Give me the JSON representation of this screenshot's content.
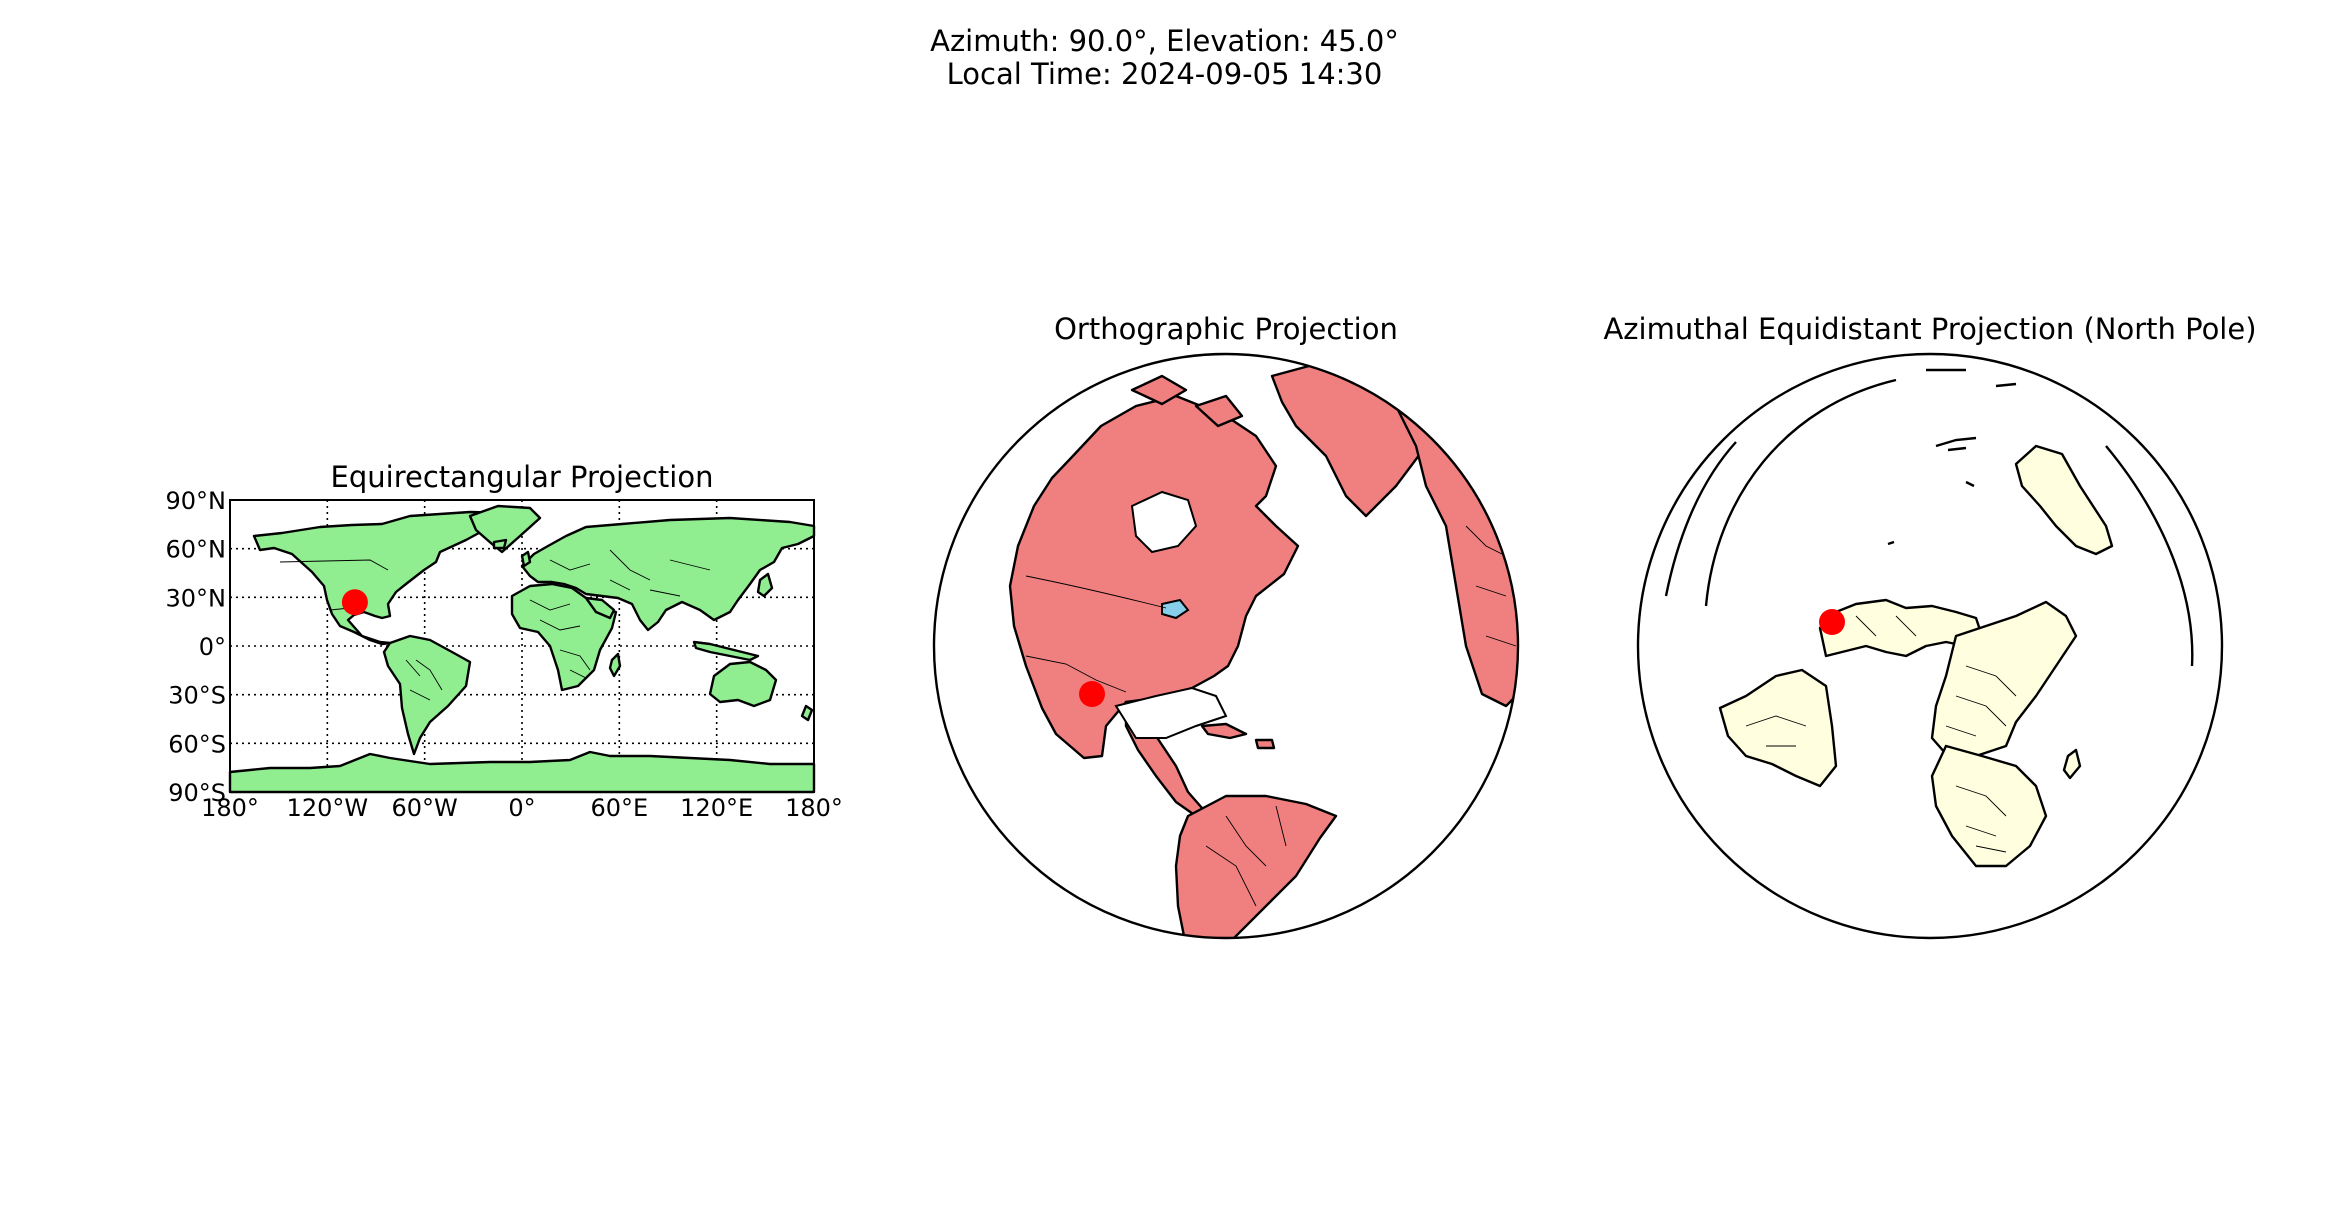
{
  "figure": {
    "title_line1": "Azimuth: 90.0°, Elevation: 45.0°",
    "title_line2": "Local Time: 2024-09-05 14:30"
  },
  "maps": [
    {
      "title": "Equirectangular Projection",
      "projection": "equirectangular",
      "land_color": "#90ee90",
      "marker_color": "#ff0000",
      "lat_ticks": [
        90,
        60,
        30,
        0,
        -30,
        -60,
        -90
      ],
      "lat_tick_labels": [
        "90°N",
        "60°N",
        "30°N",
        "0°",
        "30°S",
        "60°S",
        "90°S"
      ],
      "lon_ticks": [
        -180,
        -120,
        -60,
        0,
        60,
        120,
        180
      ],
      "lon_tick_labels": [
        "180°",
        "120°W",
        "60°W",
        "0°",
        "60°E",
        "120°E",
        "180°"
      ],
      "marker": {
        "lon": -103,
        "lat": 27
      }
    },
    {
      "title": "Orthographic Projection",
      "projection": "orthographic",
      "land_color": "#f08080",
      "marker_color": "#ff0000",
      "center": {
        "lon": -90,
        "lat": 45
      },
      "marker": {
        "lon": -103,
        "lat": 27
      }
    },
    {
      "title": "Azimuthal Equidistant Projection (North Pole)",
      "projection": "azimuthal-equidistant",
      "land_color": "#ffffe0",
      "marker_color": "#ff0000",
      "marker": {
        "lon": -103,
        "lat": 27
      }
    }
  ]
}
